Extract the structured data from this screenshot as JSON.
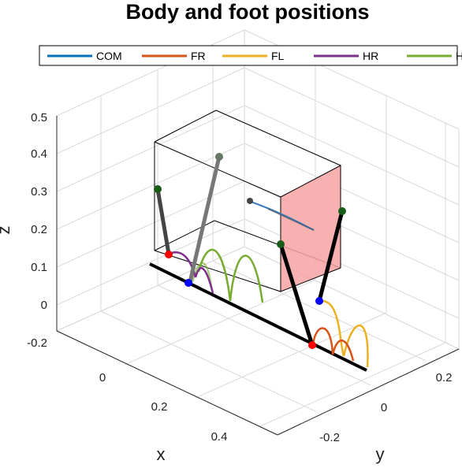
{
  "chart_data": {
    "type": "line",
    "title": "Body and foot positions",
    "xlabel": "x",
    "ylabel": "y",
    "zlabel": "z",
    "grid": true,
    "legend_placement": "top",
    "x_ticks": [
      "0",
      "0.2",
      "0.4"
    ],
    "y_ticks": [
      "-0.2",
      "0",
      "0.2"
    ],
    "z_ticks": [
      "-0.2",
      "0",
      "0.1",
      "0.2",
      "0.3",
      "0.4",
      "0.5"
    ],
    "series": [
      {
        "name": "COM",
        "color": "#0072BD"
      },
      {
        "name": "FR",
        "color": "#D95319"
      },
      {
        "name": "FL",
        "color": "#EDB120"
      },
      {
        "name": "HR",
        "color": "#7E2F8E"
      },
      {
        "name": "HL",
        "color": "#77AC30"
      }
    ]
  }
}
